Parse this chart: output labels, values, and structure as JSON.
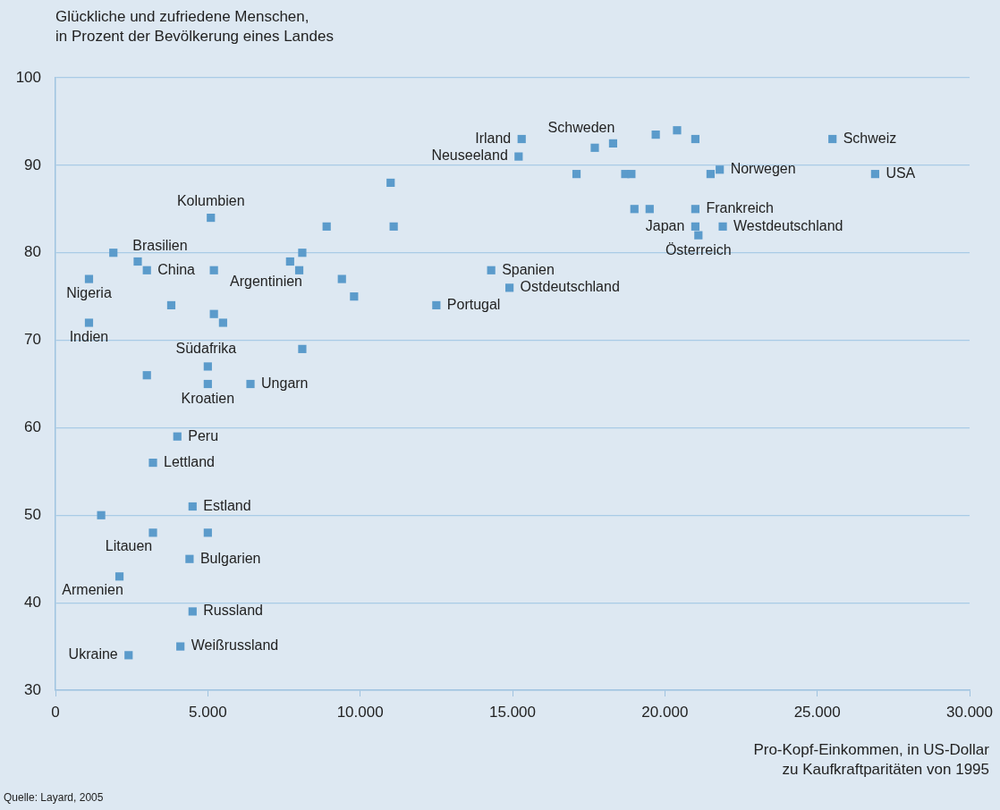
{
  "chart_data": {
    "type": "scatter",
    "ylabel": "Glückliche und zufriedene Menschen,\nin Prozent der Bevölkerung eines Landes",
    "xlabel": "Pro-Kopf-Einkommen, in US-Dollar\nzu Kaufkraftparitäten von 1995",
    "x": [
      15300,
      15200,
      17700,
      18300,
      19700,
      20400,
      21000,
      25500,
      26900,
      21800,
      21500,
      17100,
      18700,
      18900,
      19000,
      19500,
      21000,
      21000,
      21100,
      21900,
      11000,
      11100,
      8900,
      8100,
      7700,
      8000,
      9400,
      9800,
      8100,
      14300,
      14900,
      12500,
      5100,
      1900,
      2700,
      3000,
      5200,
      1100,
      3800,
      5200,
      5500,
      1100,
      3000,
      5000,
      5000,
      6400,
      4000,
      3200,
      1500,
      4500,
      3200,
      5000,
      4400,
      2100,
      4500,
      4100,
      2400
    ],
    "values": [
      93,
      91,
      92,
      92.5,
      93.5,
      94,
      93,
      93,
      89,
      89.5,
      89,
      89,
      89,
      89,
      85,
      85,
      85,
      83,
      82,
      83,
      88,
      83,
      83,
      80,
      79,
      78,
      77,
      75,
      69,
      78,
      76,
      74,
      84,
      80,
      79,
      78,
      78,
      77,
      74,
      73,
      72,
      72,
      66,
      67,
      65,
      65,
      59,
      56,
      50,
      51,
      48,
      48,
      45,
      43,
      39,
      35,
      34
    ],
    "color": "#5b9bcb",
    "marker": "square",
    "legend": false,
    "grid": "y",
    "xlim": [
      0,
      30000
    ],
    "xticks": [
      0,
      {
        "value": 5000,
        "label": "5.000"
      },
      {
        "value": 10000,
        "label": "10.000"
      },
      {
        "value": 15000,
        "label": "15.000"
      },
      {
        "value": 20000,
        "label": "20.000"
      },
      {
        "value": 25000,
        "label": "25.000"
      },
      {
        "value": 30000,
        "label": "30.000"
      }
    ],
    "ylim": [
      30,
      100
    ],
    "yticks": [
      30,
      40,
      50,
      60,
      70,
      80,
      90,
      100
    ],
    "annotations": [
      {
        "text": "Irland",
        "x": 15300,
        "y": 93
      },
      {
        "text": "Neuseeland",
        "x": 15200,
        "y": 91
      },
      {
        "text": "Schweden",
        "x": 17700,
        "y": 92
      },
      {
        "text": "Schweiz",
        "x": 25500,
        "y": 93
      },
      {
        "text": "USA",
        "x": 26900,
        "y": 89
      },
      {
        "text": "Norwegen",
        "x": 21800,
        "y": 89.5
      },
      {
        "text": "Frankreich",
        "x": 21000,
        "y": 85
      },
      {
        "text": "Japan",
        "x": 21000,
        "y": 83
      },
      {
        "text": "Westdeutschland",
        "x": 21900,
        "y": 83
      },
      {
        "text": "Österreich",
        "x": 21100,
        "y": 82
      },
      {
        "text": "Kolumbien",
        "x": 5100,
        "y": 84
      },
      {
        "text": "Brasilien",
        "x": 2700,
        "y": 79
      },
      {
        "text": "China",
        "x": 3000,
        "y": 78
      },
      {
        "text": "Nigeria",
        "x": 1100,
        "y": 77
      },
      {
        "text": "Indien",
        "x": 1100,
        "y": 72
      },
      {
        "text": "Argentinien",
        "x": 8000,
        "y": 78
      },
      {
        "text": "Spanien",
        "x": 14300,
        "y": 78
      },
      {
        "text": "Ostdeutschland",
        "x": 14900,
        "y": 76
      },
      {
        "text": "Portugal",
        "x": 12500,
        "y": 74
      },
      {
        "text": "Südafrika",
        "x": 5000,
        "y": 67
      },
      {
        "text": "Kroatien",
        "x": 5000,
        "y": 65
      },
      {
        "text": "Ungarn",
        "x": 6400,
        "y": 65
      },
      {
        "text": "Peru",
        "x": 4000,
        "y": 59
      },
      {
        "text": "Lettland",
        "x": 3200,
        "y": 56
      },
      {
        "text": "Estland",
        "x": 4500,
        "y": 51
      },
      {
        "text": "Litauen",
        "x": 3200,
        "y": 48
      },
      {
        "text": "Bulgarien",
        "x": 4400,
        "y": 45
      },
      {
        "text": "Armenien",
        "x": 2100,
        "y": 43
      },
      {
        "text": "Russland",
        "x": 4500,
        "y": 39
      },
      {
        "text": "Weißrussland",
        "x": 4100,
        "y": 35
      },
      {
        "text": "Ukraine",
        "x": 2400,
        "y": 34
      },
      "Quelle: Layard, 2005"
    ]
  }
}
